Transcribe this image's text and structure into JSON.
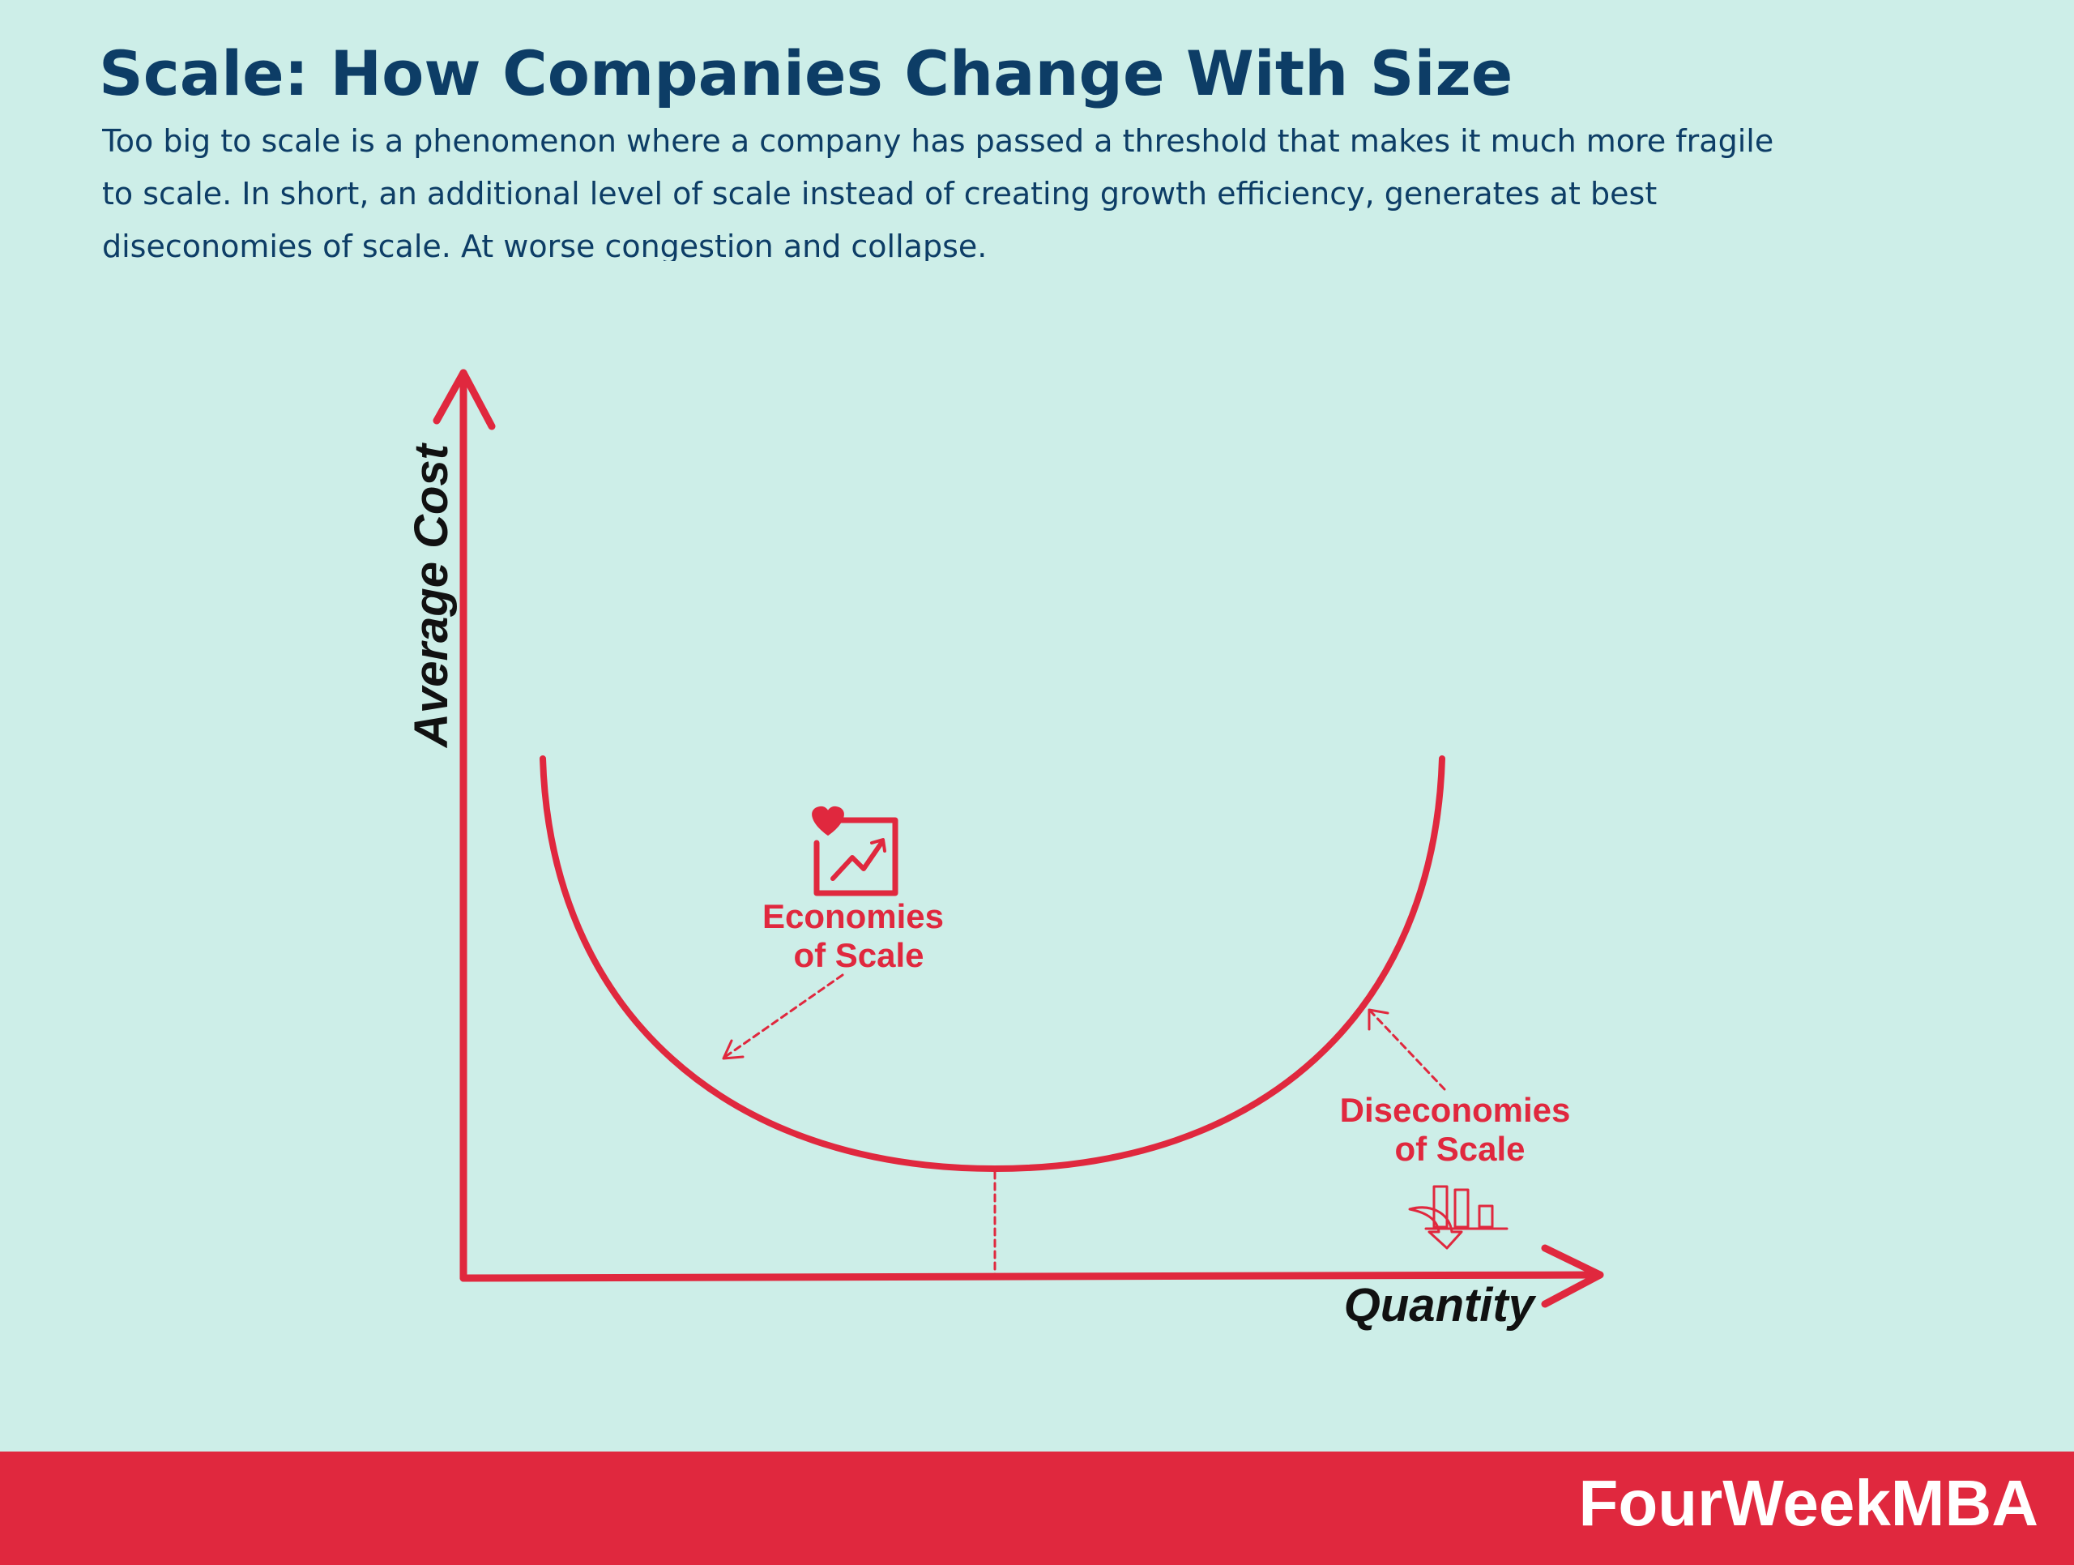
{
  "header": {
    "title": "Scale: How Companies Change With Size",
    "description": "Too big to scale is a phenomenon where a company has passed a threshold that makes it much more fragile to scale. In short, an additional level of scale instead of creating growth efficiency, generates at best diseconomies of scale. At worse congestion and collapse."
  },
  "diagram": {
    "y_axis_label": "Average Cost",
    "x_axis_label": "Quantity",
    "annotations": [
      {
        "lines": [
          "Economies",
          "of Scale"
        ]
      },
      {
        "lines": [
          "Diseconomies",
          "of Scale"
        ]
      }
    ]
  },
  "footer": {
    "brand": "FourWeekMBA"
  }
}
